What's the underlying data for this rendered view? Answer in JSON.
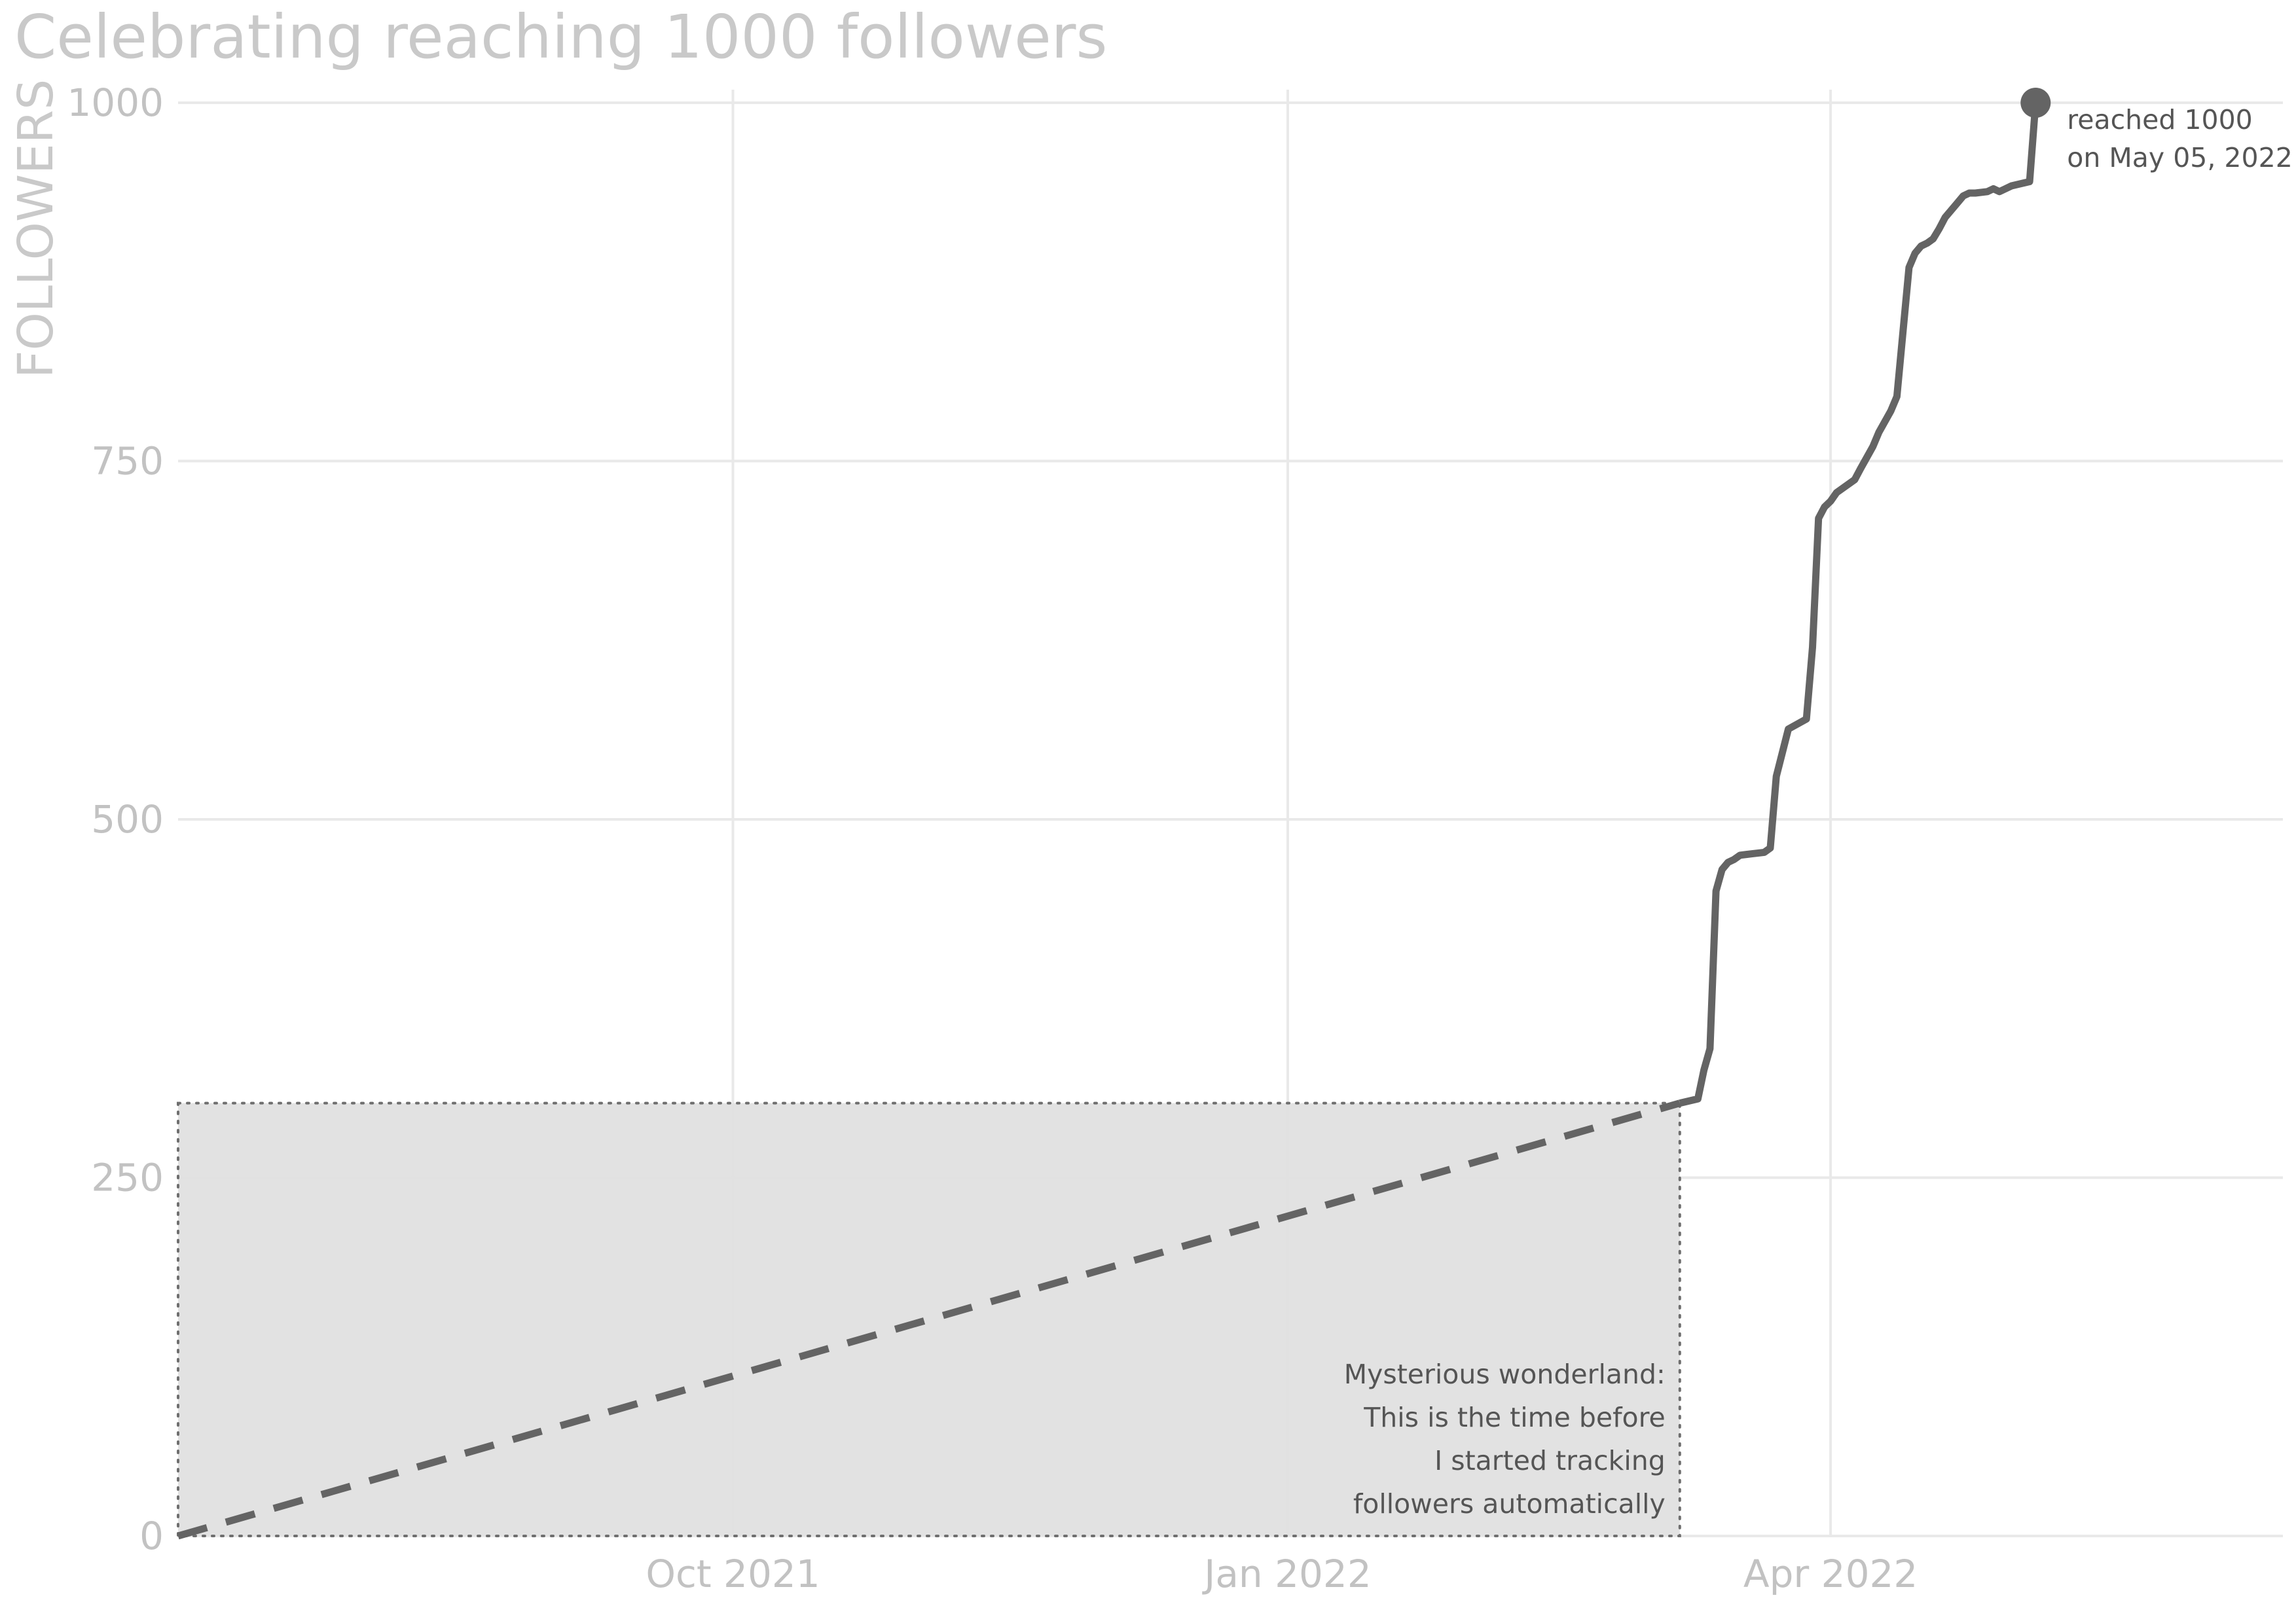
{
  "chart_data": {
    "type": "line",
    "title": "Celebrating reaching 1000 followers",
    "xlabel": "",
    "ylabel": "FOLLOWERS",
    "x_axis": {
      "type": "date",
      "range": [
        "2021-07-01",
        "2022-06-15"
      ],
      "ticks": [
        {
          "date": "2021-10-01",
          "label": "Oct 2021"
        },
        {
          "date": "2022-01-01",
          "label": "Jan 2022"
        },
        {
          "date": "2022-04-01",
          "label": "Apr 2022"
        }
      ]
    },
    "y_axis": {
      "range": [
        0,
        1000
      ],
      "ticks": [
        0,
        250,
        500,
        750,
        1000
      ],
      "tick_labels": [
        "0",
        "250",
        "500",
        "750",
        "1000"
      ]
    },
    "grid": true,
    "colors": {
      "line": "#646464",
      "shade": "#e0e0e0",
      "grid": "#e9e9e9",
      "title": "#c9c9c9",
      "tick": "#c2c2c2",
      "annotation": "#555555"
    },
    "series": [
      {
        "style": "dashed",
        "x": [
          "2021-07-01",
          "2022-03-07"
        ],
        "y": [
          0,
          302
        ]
      },
      {
        "style": "solid",
        "x": [
          "2022-03-07",
          "2022-03-10",
          "2022-03-11",
          "2022-03-12",
          "2022-03-13",
          "2022-03-14",
          "2022-03-15",
          "2022-03-16",
          "2022-03-17",
          "2022-03-19",
          "2022-03-21",
          "2022-03-22",
          "2022-03-23",
          "2022-03-25",
          "2022-03-28",
          "2022-03-29",
          "2022-03-30",
          "2022-03-31",
          "2022-04-01",
          "2022-04-02",
          "2022-04-05",
          "2022-04-06",
          "2022-04-08",
          "2022-04-09",
          "2022-04-11",
          "2022-04-12",
          "2022-04-14",
          "2022-04-15",
          "2022-04-16",
          "2022-04-17",
          "2022-04-18",
          "2022-04-19",
          "2022-04-20",
          "2022-04-21",
          "2022-04-22",
          "2022-04-23",
          "2022-04-24",
          "2022-04-25",
          "2022-04-27",
          "2022-04-28",
          "2022-04-29",
          "2022-04-30",
          "2022-05-01",
          "2022-05-04",
          "2022-05-05"
        ],
        "y": [
          302,
          305,
          325,
          340,
          450,
          465,
          470,
          472,
          475,
          476,
          477,
          480,
          530,
          563,
          570,
          620,
          710,
          718,
          722,
          728,
          737,
          745,
          760,
          770,
          785,
          795,
          885,
          895,
          900,
          902,
          905,
          912,
          920,
          925,
          930,
          935,
          937,
          937,
          938,
          940,
          938,
          940,
          942,
          945,
          1000
        ]
      }
    ],
    "shaded_region": {
      "x": [
        "2021-07-01",
        "2022-03-07"
      ],
      "y": [
        0,
        302
      ]
    },
    "highlight_point": {
      "x": "2022-05-05",
      "y": 1000
    },
    "annotations": [
      {
        "id": "milestone",
        "lines": [
          "reached 1000",
          "on May 05, 2022"
        ]
      },
      {
        "id": "wonderland",
        "lines": [
          "Mysterious wonderland:",
          "This is the time before",
          "I started tracking",
          "followers automatically"
        ]
      }
    ]
  }
}
